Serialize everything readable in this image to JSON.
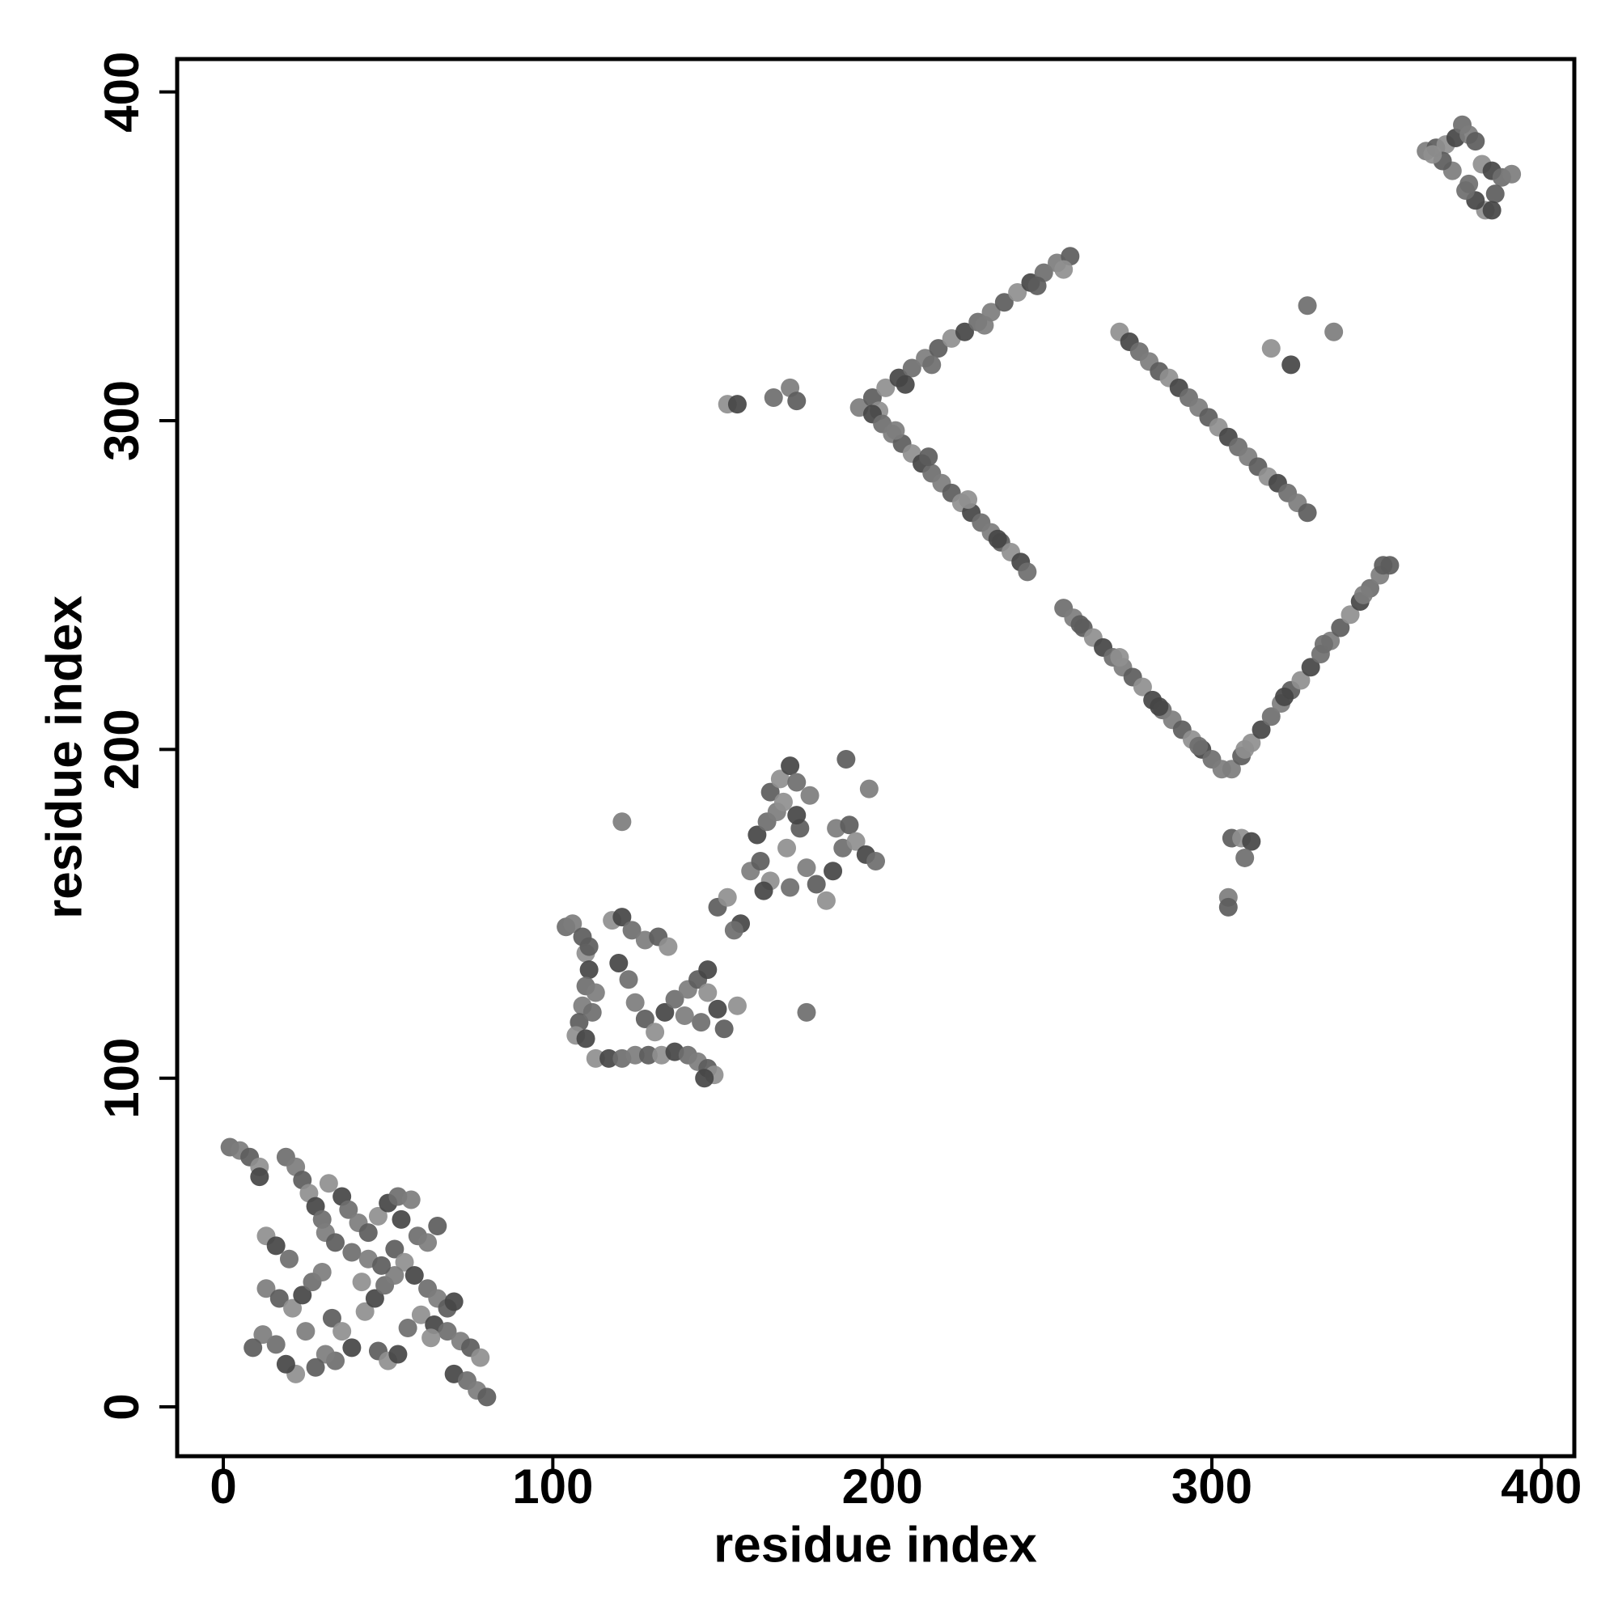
{
  "chart_data": {
    "type": "scatter",
    "xlabel": "residue index",
    "ylabel": "residue index",
    "xlim": [
      -14,
      410
    ],
    "ylim": [
      -15,
      410
    ],
    "xticks": [
      0,
      100,
      200,
      300,
      400
    ],
    "yticks": [
      0,
      100,
      200,
      300,
      400
    ],
    "grid": false,
    "palette": [
      "#7d7d7d",
      "#5c5c5c",
      "#8f8f8f",
      "#454545",
      "#6e6e6e"
    ],
    "x": [
      365,
      368,
      371,
      374,
      376,
      378,
      380,
      382,
      385,
      388,
      391,
      386,
      383,
      380,
      377,
      373,
      370,
      367,
      385,
      378,
      193,
      197,
      201,
      205,
      209,
      213,
      217,
      221,
      225,
      229,
      233,
      237,
      241,
      245,
      249,
      253,
      257,
      199,
      207,
      215,
      231,
      247,
      255,
      197,
      200,
      203,
      206,
      209,
      212,
      215,
      218,
      221,
      224,
      227,
      230,
      233,
      236,
      239,
      242,
      244,
      204,
      214,
      226,
      235,
      255,
      258,
      261,
      264,
      267,
      270,
      273,
      276,
      279,
      282,
      285,
      288,
      291,
      294,
      297,
      300,
      303,
      260,
      272,
      284,
      296,
      306,
      309,
      312,
      315,
      318,
      321,
      324,
      327,
      330,
      333,
      336,
      339,
      342,
      345,
      348,
      351,
      354,
      310,
      322,
      334,
      346,
      352,
      272,
      275,
      278,
      281,
      284,
      287,
      290,
      293,
      296,
      299,
      302,
      305,
      308,
      311,
      314,
      317,
      320,
      323,
      326,
      329,
      153,
      156,
      167,
      172,
      174,
      318,
      324,
      329,
      337,
      306,
      309,
      312,
      310,
      305,
      305,
      113,
      117,
      121,
      125,
      129,
      133,
      137,
      141,
      144,
      147,
      149,
      146,
      104,
      106,
      109,
      110,
      111,
      110,
      109,
      108,
      107,
      110,
      112,
      113,
      111,
      118,
      121,
      124,
      128,
      132,
      135,
      120,
      123,
      125,
      128,
      131,
      134,
      137,
      141,
      144,
      147,
      150,
      145,
      140,
      152,
      156,
      147,
      177,
      121,
      150,
      153,
      157,
      155,
      160,
      163,
      166,
      162,
      165,
      168,
      166,
      169,
      172,
      174,
      178,
      175,
      171,
      164,
      172,
      177,
      180,
      183,
      185,
      188,
      186,
      190,
      192,
      195,
      198,
      196,
      189,
      170,
      174,
      2,
      5,
      8,
      11,
      11,
      19,
      22,
      24,
      26,
      28,
      30,
      31,
      34,
      32,
      36,
      38,
      41,
      44,
      47,
      50,
      53,
      57,
      52,
      55,
      58,
      62,
      65,
      68,
      60,
      64,
      68,
      72,
      75,
      78,
      70,
      74,
      77,
      80,
      13,
      16,
      20,
      13,
      17,
      21,
      24,
      27,
      30,
      33,
      36,
      39,
      34,
      31,
      28,
      22,
      19,
      16,
      12,
      9,
      43,
      46,
      49,
      52,
      47,
      50,
      53,
      39,
      44,
      48,
      42,
      54,
      59,
      62,
      65,
      63,
      70,
      56,
      25
    ],
    "y": [
      382,
      383,
      384,
      386,
      390,
      387,
      385,
      378,
      376,
      374,
      375,
      369,
      364,
      367,
      370,
      376,
      379,
      381,
      364,
      372,
      304,
      307,
      310,
      313,
      316,
      319,
      322,
      325,
      327,
      330,
      333,
      336,
      339,
      342,
      345,
      348,
      350,
      303,
      311,
      317,
      329,
      341,
      346,
      302,
      299,
      296,
      293,
      290,
      287,
      284,
      281,
      278,
      275,
      272,
      269,
      266,
      263,
      260,
      257,
      254,
      297,
      289,
      276,
      264,
      243,
      240,
      237,
      234,
      231,
      228,
      225,
      222,
      219,
      215,
      212,
      209,
      206,
      203,
      200,
      197,
      194,
      238,
      228,
      213,
      201,
      194,
      198,
      202,
      206,
      210,
      214,
      218,
      221,
      225,
      229,
      233,
      237,
      241,
      245,
      249,
      253,
      256,
      200,
      216,
      232,
      247,
      256,
      327,
      324,
      321,
      318,
      315,
      313,
      310,
      307,
      304,
      301,
      298,
      295,
      292,
      289,
      286,
      283,
      281,
      278,
      275,
      272,
      305,
      305,
      307,
      310,
      306,
      322,
      317,
      335,
      327,
      173,
      173,
      172,
      167,
      155,
      152,
      106,
      106,
      106,
      107,
      107,
      107,
      108,
      107,
      105,
      103,
      101,
      100,
      146,
      147,
      143,
      138,
      133,
      128,
      122,
      117,
      113,
      112,
      120,
      126,
      140,
      148,
      149,
      145,
      142,
      143,
      140,
      135,
      130,
      123,
      118,
      114,
      120,
      124,
      127,
      130,
      126,
      121,
      117,
      119,
      115,
      122,
      133,
      120,
      178,
      152,
      155,
      147,
      145,
      163,
      166,
      160,
      174,
      178,
      181,
      187,
      191,
      195,
      190,
      186,
      176,
      170,
      157,
      158,
      164,
      159,
      154,
      163,
      170,
      176,
      177,
      172,
      168,
      166,
      188,
      197,
      184,
      180,
      79,
      78,
      76,
      73,
      70,
      76,
      73,
      69,
      65,
      61,
      57,
      53,
      50,
      68,
      64,
      60,
      56,
      53,
      58,
      62,
      64,
      63,
      48,
      44,
      40,
      36,
      33,
      30,
      28,
      25,
      23,
      20,
      18,
      15,
      10,
      8,
      5,
      3,
      52,
      49,
      45,
      36,
      33,
      30,
      34,
      38,
      41,
      27,
      23,
      18,
      14,
      16,
      12,
      10,
      13,
      19,
      22,
      18,
      29,
      33,
      37,
      40,
      17,
      14,
      16,
      47,
      45,
      43,
      38,
      57,
      52,
      50,
      55,
      21,
      32,
      24,
      23
    ]
  }
}
